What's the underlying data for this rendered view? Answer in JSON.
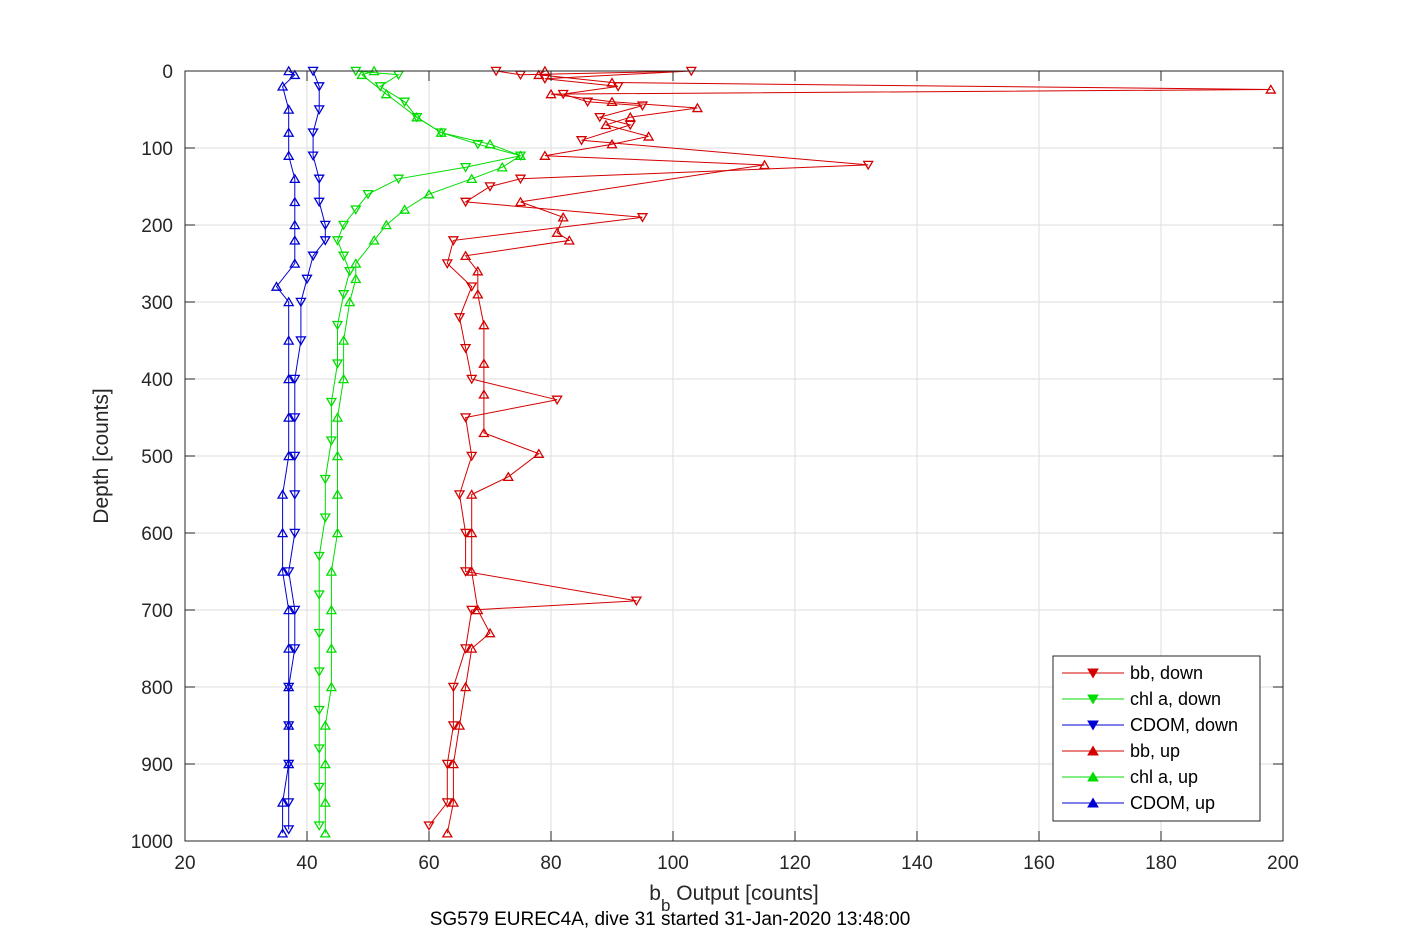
{
  "chart_data": {
    "type": "line",
    "xlabel": "b_b Output [counts]",
    "xlabel_main": "b",
    "xlabel_sub": "b",
    "xlabel_rest": " Output [counts]",
    "ylabel": "Depth [counts]",
    "caption": "SG579 EUREC4A, dive 31 started 31-Jan-2020 13:48:00",
    "xlim": [
      20,
      200
    ],
    "ylim": [
      0,
      1000
    ],
    "y_reversed": true,
    "grid": true,
    "legend_position": "bottom-right",
    "x_ticks": [
      "20",
      "40",
      "60",
      "80",
      "100",
      "120",
      "140",
      "160",
      "180",
      "200"
    ],
    "y_ticks": [
      "0",
      "100",
      "200",
      "300",
      "400",
      "500",
      "600",
      "700",
      "800",
      "900",
      "1000"
    ],
    "series": [
      {
        "name": "bb, down",
        "color": "#d40000",
        "marker": "triangle-down",
        "points": [
          [
            71,
            0
          ],
          [
            75,
            5
          ],
          [
            103,
            0
          ],
          [
            79,
            10
          ],
          [
            91,
            20
          ],
          [
            82,
            30
          ],
          [
            86,
            40
          ],
          [
            95,
            45
          ],
          [
            88,
            60
          ],
          [
            93,
            70
          ],
          [
            85,
            90
          ],
          [
            132,
            122
          ],
          [
            75,
            140
          ],
          [
            70,
            150
          ],
          [
            66,
            170
          ],
          [
            95,
            190
          ],
          [
            64,
            220
          ],
          [
            63,
            250
          ],
          [
            67,
            280
          ],
          [
            65,
            320
          ],
          [
            66,
            360
          ],
          [
            67,
            400
          ],
          [
            81,
            427
          ],
          [
            66,
            450
          ],
          [
            67,
            500
          ],
          [
            65,
            550
          ],
          [
            66,
            600
          ],
          [
            66,
            650
          ],
          [
            94,
            688
          ],
          [
            67,
            700
          ],
          [
            66,
            750
          ],
          [
            64,
            800
          ],
          [
            64,
            850
          ],
          [
            63,
            900
          ],
          [
            63,
            950
          ],
          [
            60,
            980
          ]
        ]
      },
      {
        "name": "chl a, down",
        "color": "#00dd00",
        "marker": "triangle-down",
        "points": [
          [
            48,
            0
          ],
          [
            55,
            5
          ],
          [
            52,
            20
          ],
          [
            56,
            40
          ],
          [
            58,
            60
          ],
          [
            62,
            80
          ],
          [
            68,
            95
          ],
          [
            75,
            110
          ],
          [
            66,
            125
          ],
          [
            55,
            140
          ],
          [
            50,
            160
          ],
          [
            48,
            180
          ],
          [
            46,
            200
          ],
          [
            45,
            220
          ],
          [
            46,
            240
          ],
          [
            47,
            260
          ],
          [
            46,
            290
          ],
          [
            45,
            330
          ],
          [
            45,
            380
          ],
          [
            44,
            430
          ],
          [
            44,
            480
          ],
          [
            43,
            530
          ],
          [
            43,
            580
          ],
          [
            42,
            630
          ],
          [
            42,
            680
          ],
          [
            42,
            730
          ],
          [
            42,
            780
          ],
          [
            42,
            830
          ],
          [
            42,
            880
          ],
          [
            42,
            930
          ],
          [
            42,
            980
          ]
        ]
      },
      {
        "name": "CDOM, down",
        "color": "#0000d4",
        "marker": "triangle-down",
        "points": [
          [
            41,
            0
          ],
          [
            42,
            20
          ],
          [
            42,
            50
          ],
          [
            41,
            80
          ],
          [
            41,
            110
          ],
          [
            42,
            140
          ],
          [
            42,
            170
          ],
          [
            43,
            200
          ],
          [
            43,
            220
          ],
          [
            41,
            240
          ],
          [
            40,
            270
          ],
          [
            39,
            300
          ],
          [
            39,
            350
          ],
          [
            38,
            400
          ],
          [
            38,
            450
          ],
          [
            38,
            500
          ],
          [
            38,
            550
          ],
          [
            38,
            600
          ],
          [
            37,
            650
          ],
          [
            38,
            700
          ],
          [
            38,
            750
          ],
          [
            37,
            800
          ],
          [
            37,
            850
          ],
          [
            37,
            900
          ],
          [
            37,
            950
          ],
          [
            37,
            985
          ]
        ]
      },
      {
        "name": "bb, up",
        "color": "#d40000",
        "marker": "triangle-up",
        "points": [
          [
            63,
            990
          ],
          [
            64,
            950
          ],
          [
            64,
            900
          ],
          [
            65,
            850
          ],
          [
            66,
            800
          ],
          [
            67,
            750
          ],
          [
            70,
            730
          ],
          [
            68,
            700
          ],
          [
            67,
            650
          ],
          [
            67,
            600
          ],
          [
            67,
            550
          ],
          [
            73,
            527
          ],
          [
            78,
            497
          ],
          [
            69,
            470
          ],
          [
            69,
            420
          ],
          [
            69,
            380
          ],
          [
            69,
            330
          ],
          [
            68,
            290
          ],
          [
            68,
            260
          ],
          [
            66,
            240
          ],
          [
            83,
            220
          ],
          [
            81,
            210
          ],
          [
            82,
            190
          ],
          [
            75,
            170
          ],
          [
            115,
            122
          ],
          [
            79,
            110
          ],
          [
            90,
            95
          ],
          [
            96,
            85
          ],
          [
            89,
            70
          ],
          [
            93,
            60
          ],
          [
            104,
            48
          ],
          [
            90,
            40
          ],
          [
            80,
            30
          ],
          [
            198,
            24
          ],
          [
            90,
            15
          ],
          [
            78,
            5
          ],
          [
            79,
            0
          ]
        ]
      },
      {
        "name": "chl a, up",
        "color": "#00dd00",
        "marker": "triangle-up",
        "points": [
          [
            43,
            990
          ],
          [
            43,
            950
          ],
          [
            43,
            900
          ],
          [
            43,
            850
          ],
          [
            44,
            800
          ],
          [
            44,
            750
          ],
          [
            44,
            700
          ],
          [
            44,
            650
          ],
          [
            45,
            600
          ],
          [
            45,
            550
          ],
          [
            45,
            500
          ],
          [
            45,
            450
          ],
          [
            46,
            400
          ],
          [
            46,
            350
          ],
          [
            47,
            300
          ],
          [
            48,
            270
          ],
          [
            48,
            250
          ],
          [
            51,
            220
          ],
          [
            53,
            200
          ],
          [
            56,
            180
          ],
          [
            60,
            160
          ],
          [
            67,
            140
          ],
          [
            72,
            125
          ],
          [
            75,
            110
          ],
          [
            70,
            95
          ],
          [
            62,
            80
          ],
          [
            58,
            60
          ],
          [
            53,
            30
          ],
          [
            49,
            5
          ],
          [
            51,
            0
          ]
        ]
      },
      {
        "name": "CDOM, up",
        "color": "#0000d4",
        "marker": "triangle-up",
        "points": [
          [
            36,
            990
          ],
          [
            36,
            950
          ],
          [
            37,
            900
          ],
          [
            37,
            850
          ],
          [
            37,
            800
          ],
          [
            37,
            750
          ],
          [
            37,
            700
          ],
          [
            36,
            650
          ],
          [
            36,
            600
          ],
          [
            36,
            550
          ],
          [
            37,
            500
          ],
          [
            37,
            450
          ],
          [
            37,
            400
          ],
          [
            37,
            350
          ],
          [
            37,
            300
          ],
          [
            35,
            280
          ],
          [
            38,
            250
          ],
          [
            38,
            220
          ],
          [
            38,
            200
          ],
          [
            38,
            170
          ],
          [
            38,
            140
          ],
          [
            37,
            110
          ],
          [
            37,
            80
          ],
          [
            37,
            50
          ],
          [
            36,
            20
          ],
          [
            38,
            5
          ],
          [
            37,
            0
          ]
        ]
      }
    ]
  }
}
